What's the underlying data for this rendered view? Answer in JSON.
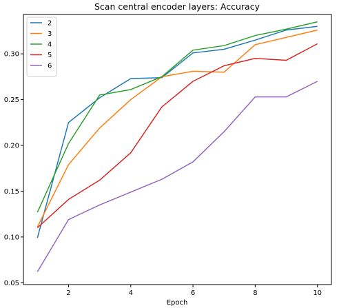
{
  "chart_data": {
    "type": "line",
    "title": "Scan central encoder layers: Accuracy",
    "xlabel": "Epoch",
    "ylabel": "",
    "x": [
      1,
      2,
      3,
      4,
      5,
      6,
      7,
      8,
      9,
      10
    ],
    "xlim": [
      0.55,
      10.45
    ],
    "ylim": [
      0.048,
      0.343
    ],
    "xticks": [
      2,
      4,
      6,
      8,
      10
    ],
    "yticks": [
      0.05,
      0.1,
      0.15,
      0.2,
      0.25,
      0.3
    ],
    "xtick_labels": [
      "2",
      "4",
      "6",
      "8",
      "10"
    ],
    "ytick_labels": [
      "0.05",
      "0.10",
      "0.15",
      "0.20",
      "0.25",
      "0.30"
    ],
    "grid": false,
    "legend_position": "upper-left",
    "series": [
      {
        "name": "2",
        "color": "#1f77b4",
        "values": [
          0.099,
          0.225,
          0.252,
          0.273,
          0.274,
          0.301,
          0.305,
          0.315,
          0.326,
          0.33
        ]
      },
      {
        "name": "3",
        "color": "#ff7f0e",
        "values": [
          0.111,
          0.179,
          0.219,
          0.25,
          0.275,
          0.281,
          0.28,
          0.31,
          0.318,
          0.326
        ]
      },
      {
        "name": "4",
        "color": "#2ca02c",
        "values": [
          0.127,
          0.202,
          0.255,
          0.261,
          0.275,
          0.304,
          0.309,
          0.32,
          0.327,
          0.335
        ]
      },
      {
        "name": "5",
        "color": "#d62728",
        "values": [
          0.11,
          0.141,
          0.162,
          0.192,
          0.242,
          0.27,
          0.287,
          0.295,
          0.293,
          0.311
        ]
      },
      {
        "name": "6",
        "color": "#9467bd",
        "values": [
          0.062,
          0.119,
          0.135,
          0.149,
          0.163,
          0.182,
          0.215,
          0.253,
          0.253,
          0.27
        ]
      }
    ]
  }
}
